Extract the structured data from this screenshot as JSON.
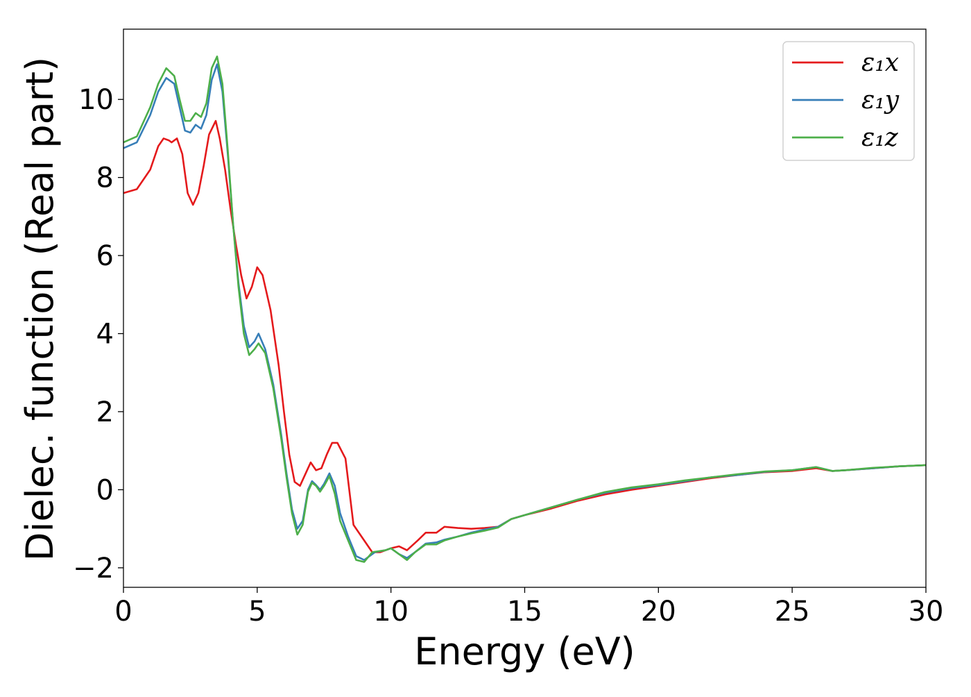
{
  "chart_data": {
    "type": "line",
    "title": "",
    "xlabel": "Energy (eV)",
    "ylabel": "Dielec. function (Real part)",
    "xlim": [
      0,
      30
    ],
    "ylim": [
      -2.5,
      11.8
    ],
    "xticks": [
      0,
      5,
      10,
      15,
      20,
      25,
      30
    ],
    "xtick_labels": [
      "0",
      "5",
      "10",
      "15",
      "20",
      "25",
      "30"
    ],
    "yticks": [
      -2,
      0,
      2,
      4,
      6,
      8,
      10
    ],
    "ytick_labels": [
      "−2",
      "0",
      "2",
      "4",
      "6",
      "8",
      "10"
    ],
    "grid": false,
    "legend_position": "top-right",
    "series": [
      {
        "name": "ε₁x",
        "color": "#e41a1c",
        "points": [
          [
            0,
            7.6
          ],
          [
            0.5,
            7.7
          ],
          [
            1.0,
            8.2
          ],
          [
            1.3,
            8.8
          ],
          [
            1.5,
            9.0
          ],
          [
            1.7,
            8.95
          ],
          [
            1.8,
            8.9
          ],
          [
            2.0,
            9.0
          ],
          [
            2.2,
            8.6
          ],
          [
            2.4,
            7.6
          ],
          [
            2.6,
            7.3
          ],
          [
            2.8,
            7.6
          ],
          [
            3.0,
            8.3
          ],
          [
            3.2,
            9.1
          ],
          [
            3.45,
            9.45
          ],
          [
            3.6,
            9.0
          ],
          [
            3.8,
            8.2
          ],
          [
            4.0,
            7.2
          ],
          [
            4.2,
            6.3
          ],
          [
            4.4,
            5.5
          ],
          [
            4.6,
            4.9
          ],
          [
            4.8,
            5.2
          ],
          [
            5.0,
            5.7
          ],
          [
            5.2,
            5.5
          ],
          [
            5.5,
            4.6
          ],
          [
            5.8,
            3.2
          ],
          [
            6.0,
            2.0
          ],
          [
            6.2,
            0.9
          ],
          [
            6.4,
            0.2
          ],
          [
            6.6,
            0.1
          ],
          [
            6.8,
            0.4
          ],
          [
            7.0,
            0.7
          ],
          [
            7.2,
            0.5
          ],
          [
            7.4,
            0.55
          ],
          [
            7.6,
            0.9
          ],
          [
            7.8,
            1.2
          ],
          [
            8.0,
            1.2
          ],
          [
            8.3,
            0.8
          ],
          [
            8.6,
            -0.9
          ],
          [
            9.0,
            -1.3
          ],
          [
            9.3,
            -1.6
          ],
          [
            9.6,
            -1.6
          ],
          [
            10.0,
            -1.5
          ],
          [
            10.3,
            -1.45
          ],
          [
            10.6,
            -1.55
          ],
          [
            11.0,
            -1.3
          ],
          [
            11.3,
            -1.1
          ],
          [
            11.7,
            -1.1
          ],
          [
            12.0,
            -0.95
          ],
          [
            12.5,
            -0.98
          ],
          [
            13.0,
            -1.0
          ],
          [
            13.5,
            -0.98
          ],
          [
            14.0,
            -0.95
          ],
          [
            14.5,
            -0.75
          ],
          [
            15.0,
            -0.65
          ],
          [
            16.0,
            -0.48
          ],
          [
            17.0,
            -0.28
          ],
          [
            18.0,
            -0.12
          ],
          [
            19.0,
            0.0
          ],
          [
            20.0,
            0.1
          ],
          [
            21.0,
            0.2
          ],
          [
            22.0,
            0.3
          ],
          [
            23.0,
            0.38
          ],
          [
            24.0,
            0.45
          ],
          [
            25.0,
            0.48
          ],
          [
            25.9,
            0.55
          ],
          [
            26.5,
            0.48
          ],
          [
            27.0,
            0.5
          ],
          [
            28.0,
            0.55
          ],
          [
            29.0,
            0.6
          ],
          [
            30.0,
            0.63
          ]
        ]
      },
      {
        "name": "ε₁y",
        "color": "#377eb8",
        "points": [
          [
            0,
            8.75
          ],
          [
            0.5,
            8.9
          ],
          [
            1.0,
            9.6
          ],
          [
            1.3,
            10.2
          ],
          [
            1.6,
            10.55
          ],
          [
            1.9,
            10.4
          ],
          [
            2.1,
            9.8
          ],
          [
            2.3,
            9.2
          ],
          [
            2.5,
            9.15
          ],
          [
            2.7,
            9.35
          ],
          [
            2.9,
            9.25
          ],
          [
            3.1,
            9.6
          ],
          [
            3.3,
            10.5
          ],
          [
            3.5,
            10.9
          ],
          [
            3.7,
            10.2
          ],
          [
            3.9,
            8.6
          ],
          [
            4.1,
            6.8
          ],
          [
            4.3,
            5.3
          ],
          [
            4.5,
            4.2
          ],
          [
            4.7,
            3.65
          ],
          [
            4.9,
            3.8
          ],
          [
            5.05,
            4.0
          ],
          [
            5.3,
            3.6
          ],
          [
            5.6,
            2.7
          ],
          [
            5.9,
            1.4
          ],
          [
            6.1,
            0.4
          ],
          [
            6.3,
            -0.5
          ],
          [
            6.5,
            -1.0
          ],
          [
            6.7,
            -0.8
          ],
          [
            6.9,
            0.0
          ],
          [
            7.05,
            0.22
          ],
          [
            7.2,
            0.12
          ],
          [
            7.35,
            0.0
          ],
          [
            7.5,
            0.15
          ],
          [
            7.7,
            0.42
          ],
          [
            7.9,
            0.1
          ],
          [
            8.1,
            -0.6
          ],
          [
            8.4,
            -1.2
          ],
          [
            8.7,
            -1.7
          ],
          [
            9.0,
            -1.8
          ],
          [
            9.4,
            -1.6
          ],
          [
            9.8,
            -1.55
          ],
          [
            10.0,
            -1.5
          ],
          [
            10.3,
            -1.65
          ],
          [
            10.6,
            -1.75
          ],
          [
            10.9,
            -1.6
          ],
          [
            11.3,
            -1.38
          ],
          [
            11.7,
            -1.35
          ],
          [
            12.0,
            -1.28
          ],
          [
            12.5,
            -1.2
          ],
          [
            13.0,
            -1.1
          ],
          [
            13.5,
            -1.02
          ],
          [
            14.0,
            -0.95
          ],
          [
            14.5,
            -0.75
          ],
          [
            15.0,
            -0.65
          ],
          [
            16.0,
            -0.45
          ],
          [
            17.0,
            -0.25
          ],
          [
            18.0,
            -0.08
          ],
          [
            19.0,
            0.04
          ],
          [
            20.0,
            0.12
          ],
          [
            21.0,
            0.22
          ],
          [
            22.0,
            0.32
          ],
          [
            23.0,
            0.38
          ],
          [
            24.0,
            0.46
          ],
          [
            25.0,
            0.5
          ],
          [
            25.9,
            0.58
          ],
          [
            26.5,
            0.48
          ],
          [
            27.0,
            0.5
          ],
          [
            28.0,
            0.55
          ],
          [
            29.0,
            0.6
          ],
          [
            30.0,
            0.63
          ]
        ]
      },
      {
        "name": "ε₁z",
        "color": "#4daf4a",
        "points": [
          [
            0,
            8.9
          ],
          [
            0.5,
            9.05
          ],
          [
            1.0,
            9.8
          ],
          [
            1.3,
            10.4
          ],
          [
            1.6,
            10.8
          ],
          [
            1.9,
            10.6
          ],
          [
            2.1,
            10.0
          ],
          [
            2.3,
            9.45
          ],
          [
            2.5,
            9.45
          ],
          [
            2.7,
            9.65
          ],
          [
            2.9,
            9.55
          ],
          [
            3.1,
            9.9
          ],
          [
            3.3,
            10.8
          ],
          [
            3.5,
            11.1
          ],
          [
            3.7,
            10.4
          ],
          [
            3.9,
            8.7
          ],
          [
            4.1,
            6.8
          ],
          [
            4.3,
            5.2
          ],
          [
            4.5,
            4.0
          ],
          [
            4.7,
            3.45
          ],
          [
            4.9,
            3.6
          ],
          [
            5.05,
            3.75
          ],
          [
            5.3,
            3.5
          ],
          [
            5.6,
            2.6
          ],
          [
            5.9,
            1.3
          ],
          [
            6.1,
            0.3
          ],
          [
            6.3,
            -0.6
          ],
          [
            6.5,
            -1.15
          ],
          [
            6.7,
            -0.9
          ],
          [
            6.9,
            -0.05
          ],
          [
            7.05,
            0.18
          ],
          [
            7.2,
            0.1
          ],
          [
            7.35,
            -0.05
          ],
          [
            7.5,
            0.1
          ],
          [
            7.7,
            0.35
          ],
          [
            7.9,
            -0.1
          ],
          [
            8.1,
            -0.8
          ],
          [
            8.4,
            -1.3
          ],
          [
            8.7,
            -1.8
          ],
          [
            9.0,
            -1.85
          ],
          [
            9.3,
            -1.6
          ],
          [
            9.8,
            -1.55
          ],
          [
            10.0,
            -1.5
          ],
          [
            10.3,
            -1.65
          ],
          [
            10.6,
            -1.8
          ],
          [
            10.9,
            -1.6
          ],
          [
            11.3,
            -1.4
          ],
          [
            11.7,
            -1.4
          ],
          [
            12.0,
            -1.3
          ],
          [
            12.5,
            -1.2
          ],
          [
            13.0,
            -1.12
          ],
          [
            13.5,
            -1.05
          ],
          [
            14.0,
            -0.97
          ],
          [
            14.5,
            -0.75
          ],
          [
            15.0,
            -0.65
          ],
          [
            16.0,
            -0.45
          ],
          [
            17.0,
            -0.25
          ],
          [
            18.0,
            -0.06
          ],
          [
            19.0,
            0.06
          ],
          [
            20.0,
            0.14
          ],
          [
            21.0,
            0.24
          ],
          [
            22.0,
            0.32
          ],
          [
            23.0,
            0.4
          ],
          [
            24.0,
            0.47
          ],
          [
            25.0,
            0.5
          ],
          [
            25.9,
            0.58
          ],
          [
            26.5,
            0.48
          ],
          [
            27.0,
            0.5
          ],
          [
            28.0,
            0.56
          ],
          [
            29.0,
            0.6
          ],
          [
            30.0,
            0.63
          ]
        ]
      }
    ]
  }
}
